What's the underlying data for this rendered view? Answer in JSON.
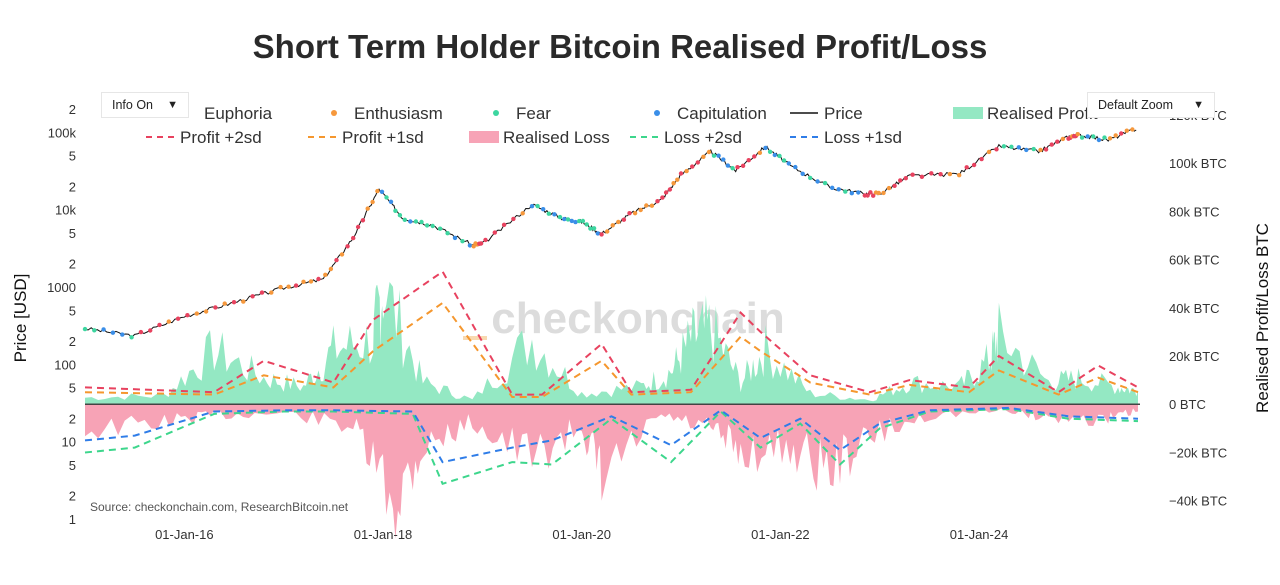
{
  "title": "Short Term Holder Bitcoin Realised Profit/Loss",
  "controls": {
    "info_label": "Info On",
    "zoom_label": "Default Zoom",
    "caret": "▼"
  },
  "source": "Source: checkonchain.com, ResearchBitcoin.net",
  "watermark": "checkonchain",
  "colors": {
    "euphoria": "#e8425f",
    "enthusiasm": "#f6983c",
    "fear": "#3dd6a0",
    "capitulation": "#3a8ee8",
    "price": "#111111",
    "profit_fill": "#94e8c3",
    "loss_fill": "#f7a3b6",
    "profit_2sd": "#e8425f",
    "profit_1sd": "#f5972e",
    "loss_2sd": "#3dd68c",
    "loss_1sd": "#2f7de8"
  },
  "chart_data": {
    "type": "line",
    "title": "Short Term Holder Bitcoin Realised Profit/Loss",
    "xlabel": "",
    "ylabel_left": "Price [USD]",
    "ylabel_right": "Realised Profit/Loss BTC",
    "x_ticks": [
      "01-Jan-16",
      "01-Jan-18",
      "01-Jan-20",
      "01-Jan-22",
      "01-Jan-24"
    ],
    "y_left_scale": "log",
    "y_left_ticks": [
      "1",
      "2",
      "5",
      "10",
      "2",
      "5",
      "100",
      "2",
      "5",
      "1000",
      "2",
      "5",
      "10k",
      "2",
      "5",
      "100k",
      "2"
    ],
    "y_right_ticks": [
      "−40k BTC",
      "−20k BTC",
      "0 BTC",
      "20k BTC",
      "40k BTC",
      "60k BTC",
      "80k BTC",
      "100k BTC",
      "120k BTC"
    ],
    "y_right_range": [
      -48000,
      122000
    ],
    "legend": [
      "Euphoria",
      "Enthusiasm",
      "Fear",
      "Capitulation",
      "Price",
      "Realised Profit",
      "Profit +2sd",
      "Profit +1sd",
      "Realised Loss",
      "Loss +2sd",
      "Loss +1sd"
    ],
    "legend_position": "top",
    "grid": false,
    "series": [
      {
        "name": "Price",
        "scale": "left",
        "x": [
          2015.0,
          2015.5,
          2016.0,
          2016.5,
          2017.0,
          2017.4,
          2017.7,
          2017.96,
          2018.2,
          2018.5,
          2018.9,
          2019.0,
          2019.5,
          2019.8,
          2020.0,
          2020.2,
          2020.5,
          2020.8,
          2021.0,
          2021.3,
          2021.55,
          2021.85,
          2022.1,
          2022.5,
          2022.85,
          2023.0,
          2023.3,
          2023.8,
          2024.2,
          2024.6,
          2024.9,
          2025.0,
          2025.3,
          2025.6
        ],
        "values": [
          300,
          240,
          430,
          650,
          1000,
          1300,
          4500,
          19000,
          8000,
          6500,
          3600,
          3700,
          12000,
          8000,
          7200,
          5000,
          9200,
          13800,
          29000,
          58000,
          33000,
          67000,
          38000,
          20000,
          16500,
          16500,
          28000,
          30000,
          68000,
          58000,
          90000,
          95000,
          82000,
          117000
        ]
      },
      {
        "name": "Realised Profit",
        "scale": "right",
        "x": [
          2015.0,
          2015.8,
          2016.3,
          2016.8,
          2017.2,
          2017.5,
          2017.9,
          2018.0,
          2018.4,
          2018.9,
          2019.5,
          2020.0,
          2020.6,
          2020.9,
          2021.1,
          2021.3,
          2021.6,
          2021.85,
          2022.3,
          2022.9,
          2023.3,
          2023.8,
          2024.1,
          2024.2,
          2024.7,
          2025.0,
          2025.4,
          2025.6
        ],
        "values": [
          3000,
          4000,
          25000,
          12000,
          8000,
          25000,
          30000,
          55000,
          10000,
          2000,
          30000,
          5000,
          8000,
          15000,
          30000,
          35000,
          10000,
          25000,
          5000,
          2000,
          10000,
          8000,
          20000,
          32000,
          10000,
          12000,
          8000,
          6000
        ]
      },
      {
        "name": "Realised Loss",
        "scale": "right",
        "x": [
          2015.0,
          2015.8,
          2016.3,
          2017.0,
          2017.7,
          2018.1,
          2018.4,
          2018.9,
          2019.5,
          2020.0,
          2020.2,
          2020.8,
          2021.3,
          2021.6,
          2022.1,
          2022.5,
          2022.9,
          2023.5,
          2024.3,
          2024.7,
          2025.3,
          2025.6
        ],
        "values": [
          -12000,
          -8000,
          -5000,
          -4000,
          -10000,
          -46000,
          -20000,
          -8000,
          -25000,
          -10000,
          -35000,
          -5000,
          -12000,
          -22000,
          -20000,
          -30000,
          -15000,
          -5000,
          -3000,
          -6000,
          -7000,
          -3000
        ]
      },
      {
        "name": "Profit +2sd",
        "scale": "right",
        "x": [
          2015.0,
          2016.3,
          2016.8,
          2017.5,
          2017.9,
          2018.6,
          2019.3,
          2019.6,
          2020.2,
          2020.5,
          2021.1,
          2021.6,
          2021.8,
          2022.3,
          2022.9,
          2023.3,
          2023.9,
          2024.2,
          2024.8,
          2025.2,
          2025.6
        ],
        "values": [
          7000,
          5000,
          18000,
          9000,
          35000,
          55000,
          4000,
          4000,
          25000,
          5000,
          6000,
          38000,
          30000,
          12000,
          5000,
          10000,
          7000,
          20000,
          5000,
          16000,
          7000
        ]
      },
      {
        "name": "Profit +1sd",
        "scale": "right",
        "x": [
          2015.0,
          2016.3,
          2016.8,
          2017.5,
          2017.9,
          2018.6,
          2019.3,
          2019.6,
          2020.2,
          2020.5,
          2021.1,
          2021.6,
          2021.8,
          2022.3,
          2022.9,
          2023.3,
          2023.9,
          2024.2,
          2024.8,
          2025.2,
          2025.6
        ],
        "values": [
          5000,
          4000,
          12000,
          7000,
          22000,
          42000,
          3000,
          3000,
          18000,
          4000,
          5000,
          28000,
          22000,
          9000,
          4000,
          8000,
          5000,
          14000,
          4000,
          11000,
          5000
        ]
      },
      {
        "name": "Loss +2sd",
        "scale": "right",
        "x": [
          2015.0,
          2015.5,
          2016.3,
          2017.0,
          2017.5,
          2018.3,
          2018.6,
          2019.3,
          2019.7,
          2020.3,
          2020.9,
          2021.4,
          2021.8,
          2022.2,
          2022.6,
          2023.0,
          2023.5,
          2024.3,
          2024.9,
          2025.6
        ],
        "values": [
          -20000,
          -18000,
          -4000,
          -3000,
          -3000,
          -4000,
          -33000,
          -24000,
          -25000,
          -6000,
          -24000,
          -3000,
          -18000,
          -8000,
          -25000,
          -10000,
          -3000,
          -2000,
          -6000,
          -7000
        ]
      },
      {
        "name": "Loss +1sd",
        "scale": "right",
        "x": [
          2015.0,
          2015.5,
          2016.3,
          2017.0,
          2017.5,
          2018.3,
          2018.6,
          2019.3,
          2019.7,
          2020.3,
          2020.9,
          2021.4,
          2021.8,
          2022.2,
          2022.6,
          2023.0,
          2023.5,
          2024.3,
          2024.9,
          2025.6
        ],
        "values": [
          -15000,
          -13000,
          -3000,
          -2500,
          -2500,
          -3000,
          -24000,
          -18000,
          -15000,
          -5000,
          -17000,
          -2500,
          -14000,
          -6000,
          -19000,
          -8000,
          -2500,
          -1500,
          -5000,
          -6000
        ]
      }
    ]
  }
}
